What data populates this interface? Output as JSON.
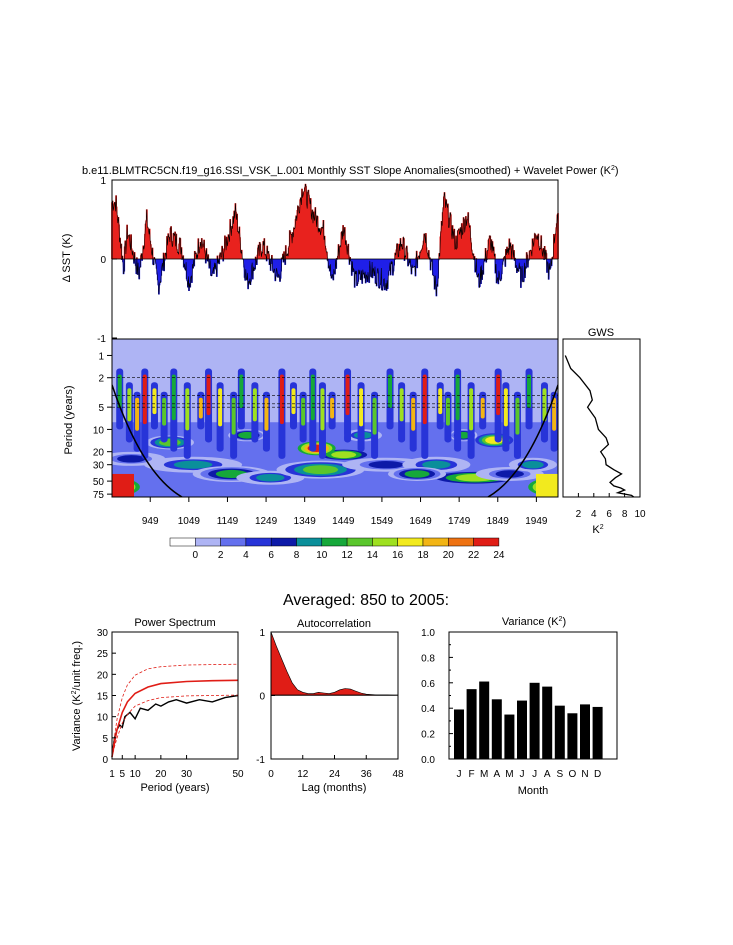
{
  "page": {
    "title": "b.e11.BLMTRC5CN.f19_g16.SSI_VSK_L.001 Monthly SST Slope Anomalies(smoothed) + Wavelet Power (K",
    "title_sup": "2",
    "title_close": ")",
    "section_title": "Averaged: 850 to 2005:"
  },
  "chart_data": [
    {
      "id": "timeseries",
      "type": "area",
      "ylabel": "Δ SST (K)",
      "ylim": [
        -1,
        1
      ],
      "yticks": [
        "1",
        "0",
        "-1"
      ],
      "pos_color": "#e8221e",
      "neg_color": "#1f1fe8",
      "xlim": [
        850,
        2005
      ],
      "anomaly_envelope": [
        {
          "year": 860,
          "value": 0.72
        },
        {
          "year": 880,
          "value": -0.1
        },
        {
          "year": 890,
          "value": 0.35
        },
        {
          "year": 920,
          "value": -0.2
        },
        {
          "year": 940,
          "value": 0.5
        },
        {
          "year": 970,
          "value": -0.35
        },
        {
          "year": 1000,
          "value": 0.32
        },
        {
          "year": 1030,
          "value": 0.15
        },
        {
          "year": 1050,
          "value": -0.3
        },
        {
          "year": 1080,
          "value": 0.28
        },
        {
          "year": 1110,
          "value": -0.25
        },
        {
          "year": 1140,
          "value": 0.12
        },
        {
          "year": 1170,
          "value": 0.6
        },
        {
          "year": 1200,
          "value": -0.3
        },
        {
          "year": 1240,
          "value": 0.18
        },
        {
          "year": 1280,
          "value": -0.25
        },
        {
          "year": 1320,
          "value": 0.38
        },
        {
          "year": 1345,
          "value": 0.92
        },
        {
          "year": 1370,
          "value": 0.58
        },
        {
          "year": 1400,
          "value": 0.35
        },
        {
          "year": 1420,
          "value": -0.3
        },
        {
          "year": 1450,
          "value": 0.4
        },
        {
          "year": 1480,
          "value": -0.28
        },
        {
          "year": 1520,
          "value": -0.15
        },
        {
          "year": 1560,
          "value": -0.3
        },
        {
          "year": 1600,
          "value": 0.22
        },
        {
          "year": 1630,
          "value": -0.2
        },
        {
          "year": 1660,
          "value": 0.35
        },
        {
          "year": 1690,
          "value": -0.4
        },
        {
          "year": 1710,
          "value": 0.75
        },
        {
          "year": 1740,
          "value": 0.2
        },
        {
          "year": 1770,
          "value": 0.55
        },
        {
          "year": 1800,
          "value": -0.3
        },
        {
          "year": 1830,
          "value": 0.25
        },
        {
          "year": 1850,
          "value": -0.28
        },
        {
          "year": 1880,
          "value": 0.18
        },
        {
          "year": 1910,
          "value": -0.25
        },
        {
          "year": 1950,
          "value": 0.35
        },
        {
          "year": 1985,
          "value": -0.2
        },
        {
          "year": 2000,
          "value": 0.45
        }
      ]
    },
    {
      "id": "wavelet",
      "type": "heatmap",
      "ylabel": "Period (years)",
      "yticks": [
        "1",
        "2",
        "5",
        "10",
        "20",
        "30",
        "50",
        "75"
      ],
      "xticks": [
        "949",
        "1049",
        "1149",
        "1249",
        "1349",
        "1449",
        "1549",
        "1649",
        "1749",
        "1849",
        "1949"
      ],
      "xlim": [
        850,
        2005
      ],
      "colorbar": {
        "levels": [
          "0",
          "2",
          "4",
          "6",
          "8",
          "10",
          "12",
          "14",
          "16",
          "18",
          "20",
          "22",
          "24"
        ],
        "colors": [
          "#ffffff",
          "#aeb4f4",
          "#6470ee",
          "#2734d8",
          "#0d1aa8",
          "#0a8f9a",
          "#16a83a",
          "#5ac62c",
          "#9ee020",
          "#f2ea1e",
          "#f2b515",
          "#ee7212",
          "#e01d16"
        ]
      }
    },
    {
      "id": "gws",
      "type": "line",
      "title": "GWS",
      "xlabel": "K",
      "xlabel_sup": "2",
      "xticks": [
        "2",
        "4",
        "6",
        "8",
        "10"
      ],
      "xlim": [
        0,
        10
      ],
      "points": [
        {
          "period": 1,
          "value": 0.3
        },
        {
          "period": 1.5,
          "value": 1.0
        },
        {
          "period": 2,
          "value": 2.2
        },
        {
          "period": 3,
          "value": 3.5
        },
        {
          "period": 4,
          "value": 3.8
        },
        {
          "period": 5,
          "value": 3.2
        },
        {
          "period": 7,
          "value": 4.2
        },
        {
          "period": 10,
          "value": 4.6
        },
        {
          "period": 13,
          "value": 5.6
        },
        {
          "period": 16,
          "value": 5.9
        },
        {
          "period": 20,
          "value": 4.9
        },
        {
          "period": 25,
          "value": 5.5
        },
        {
          "period": 30,
          "value": 5.6
        },
        {
          "period": 35,
          "value": 6.6
        },
        {
          "period": 40,
          "value": 7.6
        },
        {
          "period": 45,
          "value": 6.8
        },
        {
          "period": 52,
          "value": 6.1
        },
        {
          "period": 58,
          "value": 6.6
        },
        {
          "period": 62,
          "value": 7.5
        },
        {
          "period": 66,
          "value": 8.0
        },
        {
          "period": 72,
          "value": 7.1
        },
        {
          "period": 78,
          "value": 8.9
        },
        {
          "period": 82,
          "value": 9.2
        }
      ]
    },
    {
      "id": "power_spectrum",
      "type": "line",
      "title": "Power Spectrum",
      "ylabel": "Variance (K",
      "ylabel_sup": "2",
      "ylabel_close": "/unit freq.)",
      "xlabel": "Period (years)",
      "xticks": [
        "1",
        "5",
        "10",
        "20",
        "30",
        "50"
      ],
      "yticks": [
        "0",
        "5",
        "10",
        "15",
        "20",
        "25",
        "30"
      ],
      "xlim": [
        1,
        50
      ],
      "ylim": [
        0,
        30
      ],
      "series": [
        {
          "kind": "spectrum",
          "color": "#000000",
          "x": [
            1,
            1.5,
            2,
            3,
            4,
            5,
            6,
            8,
            10,
            12,
            15,
            18,
            20,
            23,
            26,
            30,
            35,
            40,
            45,
            50
          ],
          "y": [
            0.5,
            3,
            5,
            7,
            8,
            7.5,
            10,
            11,
            9.5,
            12,
            11.5,
            13,
            12.5,
            13.5,
            14,
            13.2,
            14,
            13.5,
            14.5,
            15
          ]
        },
        {
          "kind": "red-noise",
          "color": "#e01d16",
          "x": [
            1,
            2,
            3,
            5,
            7,
            10,
            15,
            20,
            30,
            40,
            50
          ],
          "y": [
            0.5,
            4,
            7,
            11,
            13.5,
            15.5,
            17,
            17.8,
            18.3,
            18.5,
            18.6
          ]
        },
        {
          "kind": "upper-bound",
          "color": "#e01d16",
          "x": [
            1,
            2,
            3,
            5,
            7,
            10,
            15,
            20,
            30,
            40,
            50
          ],
          "y": [
            0.8,
            5.5,
            9.5,
            14.5,
            17.5,
            19.8,
            21.3,
            21.8,
            22.2,
            22.3,
            22.4
          ]
        },
        {
          "kind": "lower-bound",
          "color": "#e01d16",
          "x": [
            1,
            2,
            3,
            5,
            7,
            10,
            15,
            20,
            30,
            40,
            50
          ],
          "y": [
            0.3,
            3,
            5,
            8.5,
            10.5,
            12.5,
            13.8,
            14.5,
            14.9,
            15,
            15.1
          ]
        }
      ]
    },
    {
      "id": "autocorrelation",
      "type": "area",
      "title": "Autocorrelation",
      "xlabel": "Lag (months)",
      "xticks": [
        "0",
        "12",
        "24",
        "36",
        "48"
      ],
      "yticks": [
        "1",
        "0",
        "-1"
      ],
      "xlim": [
        0,
        48
      ],
      "ylim": [
        -1,
        1
      ],
      "fill_color": "#e01d16",
      "lag": [
        0,
        2,
        4,
        6,
        8,
        10,
        12,
        14,
        16,
        18,
        20,
        22,
        24,
        26,
        28,
        30,
        32,
        34,
        36,
        40,
        44,
        48
      ],
      "value": [
        1.0,
        0.78,
        0.58,
        0.38,
        0.2,
        0.09,
        0.05,
        0.03,
        0.03,
        0.05,
        0.04,
        0.03,
        0.05,
        0.09,
        0.11,
        0.1,
        0.07,
        0.04,
        0.02,
        0.01,
        0.01,
        0.0
      ]
    },
    {
      "id": "variance",
      "type": "bar",
      "title": "Variance (K",
      "title_sup": "2",
      "title_close": ")",
      "xlabel": "Month",
      "categories": [
        "J",
        "F",
        "M",
        "A",
        "M",
        "J",
        "J",
        "A",
        "S",
        "O",
        "N",
        "D"
      ],
      "values": [
        0.39,
        0.55,
        0.61,
        0.47,
        0.35,
        0.46,
        0.6,
        0.57,
        0.42,
        0.36,
        0.43,
        0.41
      ],
      "yticks": [
        "0.0",
        "0.2",
        "0.4",
        "0.6",
        "0.8",
        "1.0"
      ],
      "ylim": [
        0,
        1
      ],
      "bar_color": "#000000"
    }
  ]
}
